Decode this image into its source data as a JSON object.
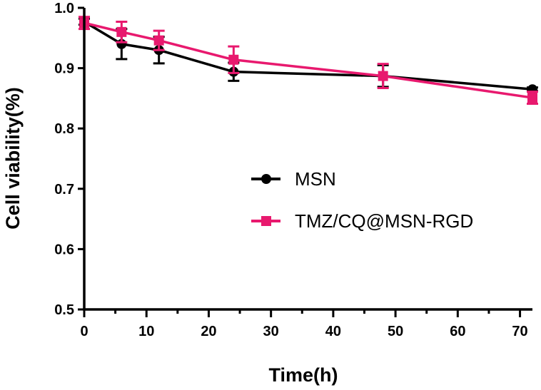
{
  "chart_data": {
    "type": "line",
    "title": "",
    "xlabel": "Time(h)",
    "ylabel": "Cell viability(%)",
    "xlim": [
      0,
      72
    ],
    "ylim": [
      0.5,
      1.0
    ],
    "x_ticks": [
      0,
      10,
      20,
      30,
      40,
      50,
      60,
      70
    ],
    "x_tick_labels": [
      "0",
      "10",
      "20",
      "30",
      "40",
      "50",
      "60",
      "70"
    ],
    "x_minor_ticks": [
      5,
      15,
      25,
      35,
      45,
      55,
      65
    ],
    "y_ticks": [
      0.5,
      0.6,
      0.7,
      0.8,
      0.9,
      1.0
    ],
    "y_tick_labels": [
      "0.5",
      "0.6",
      "0.7",
      "0.8",
      "0.9",
      "1.0"
    ],
    "grid": false,
    "legend_position": "center-right",
    "series": [
      {
        "name": "MSN",
        "color": "#000000",
        "marker": "circle",
        "x": [
          0,
          6,
          12,
          24,
          48,
          72
        ],
        "values": [
          0.977,
          0.94,
          0.93,
          0.894,
          0.887,
          0.865
        ],
        "errors": [
          0.005,
          0.025,
          0.022,
          0.015,
          0.018,
          0.003
        ]
      },
      {
        "name": "TMZ/CQ@MSN-RGD",
        "color": "#e8196e",
        "marker": "square",
        "x": [
          0,
          6,
          12,
          24,
          48,
          72
        ],
        "values": [
          0.975,
          0.96,
          0.946,
          0.914,
          0.887,
          0.851
        ],
        "errors": [
          0.01,
          0.017,
          0.016,
          0.022,
          0.02,
          0.01
        ]
      }
    ]
  }
}
